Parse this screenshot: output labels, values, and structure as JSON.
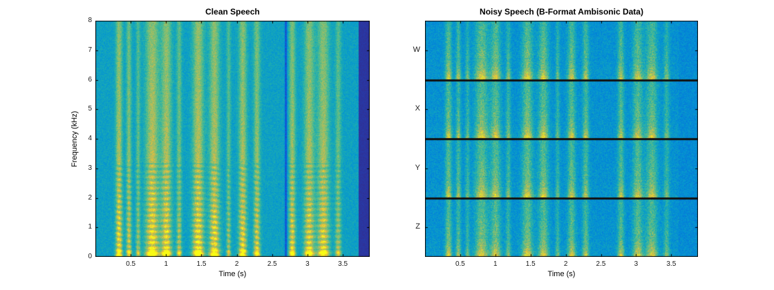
{
  "figure": {
    "background": "#ffffff",
    "text_color": "#1a1a1a"
  },
  "palette": {
    "colormap": "parula",
    "stops": [
      "#352a87",
      "#1153dd",
      "#0774d8",
      "#0292d5",
      "#1cadb1",
      "#5bbd87",
      "#a6be61",
      "#e6b93e",
      "#f9fb14"
    ]
  },
  "chart_data": [
    {
      "id": "clean",
      "type": "heatmap",
      "title": "Clean Speech",
      "xlabel": "Time (s)",
      "ylabel": "Frequency (kHz)",
      "xlim": [
        0,
        3.88
      ],
      "ylim": [
        0,
        8
      ],
      "xtick_labels": [
        "0.5",
        "1",
        "1.5",
        "2",
        "2.5",
        "3",
        "3.5"
      ],
      "ytick_labels": [
        "0",
        "1",
        "2",
        "3",
        "4",
        "5",
        "6",
        "7",
        "8"
      ],
      "grid": false,
      "legend": "none",
      "silence_after_s": 3.72,
      "dips": [
        {
          "t": 2.69,
          "w": 0.015,
          "d": 0.35
        }
      ],
      "speech_segments": [
        {
          "t": 0.33,
          "w": 0.045,
          "a": 0.95
        },
        {
          "t": 0.47,
          "w": 0.035,
          "a": 0.75
        },
        {
          "t": 0.6,
          "w": 0.03,
          "a": 0.55
        },
        {
          "t": 0.8,
          "w": 0.09,
          "a": 1.0
        },
        {
          "t": 1.0,
          "w": 0.07,
          "a": 0.95
        },
        {
          "t": 1.18,
          "w": 0.035,
          "a": 0.65
        },
        {
          "t": 1.45,
          "w": 0.075,
          "a": 1.0
        },
        {
          "t": 1.68,
          "w": 0.07,
          "a": 0.95
        },
        {
          "t": 1.88,
          "w": 0.03,
          "a": 0.55
        },
        {
          "t": 2.08,
          "w": 0.055,
          "a": 0.9
        },
        {
          "t": 2.28,
          "w": 0.045,
          "a": 0.8
        },
        {
          "t": 2.78,
          "w": 0.045,
          "a": 0.85
        },
        {
          "t": 3.02,
          "w": 0.07,
          "a": 0.9
        },
        {
          "t": 3.22,
          "w": 0.08,
          "a": 0.9
        },
        {
          "t": 3.43,
          "w": 0.04,
          "a": 0.6
        }
      ]
    },
    {
      "id": "noisy",
      "type": "heatmap",
      "title": "Noisy Speech (B-Format Ambisonic Data)",
      "xlabel": "Time (s)",
      "channels": [
        "W",
        "X",
        "Y",
        "Z"
      ],
      "xlim": [
        0,
        3.88
      ],
      "ylim_per_channel": [
        0,
        8
      ],
      "xtick_labels": [
        "0.5",
        "1",
        "1.5",
        "2",
        "2.5",
        "3",
        "3.5"
      ],
      "grid": false,
      "legend": "none",
      "noise_floor": 0.18,
      "quiet_after_s": 3.6,
      "speech_segments": [
        {
          "t": 0.33,
          "w": 0.045,
          "a": 0.95
        },
        {
          "t": 0.47,
          "w": 0.035,
          "a": 0.75
        },
        {
          "t": 0.6,
          "w": 0.03,
          "a": 0.55
        },
        {
          "t": 0.8,
          "w": 0.09,
          "a": 1.0
        },
        {
          "t": 1.0,
          "w": 0.07,
          "a": 0.95
        },
        {
          "t": 1.18,
          "w": 0.035,
          "a": 0.65
        },
        {
          "t": 1.45,
          "w": 0.075,
          "a": 1.0
        },
        {
          "t": 1.68,
          "w": 0.07,
          "a": 0.95
        },
        {
          "t": 1.88,
          "w": 0.03,
          "a": 0.55
        },
        {
          "t": 2.08,
          "w": 0.055,
          "a": 0.9
        },
        {
          "t": 2.28,
          "w": 0.045,
          "a": 0.8
        },
        {
          "t": 2.78,
          "w": 0.045,
          "a": 0.85
        },
        {
          "t": 3.02,
          "w": 0.07,
          "a": 0.9
        },
        {
          "t": 3.22,
          "w": 0.08,
          "a": 0.9
        },
        {
          "t": 3.43,
          "w": 0.04,
          "a": 0.6
        }
      ]
    }
  ]
}
